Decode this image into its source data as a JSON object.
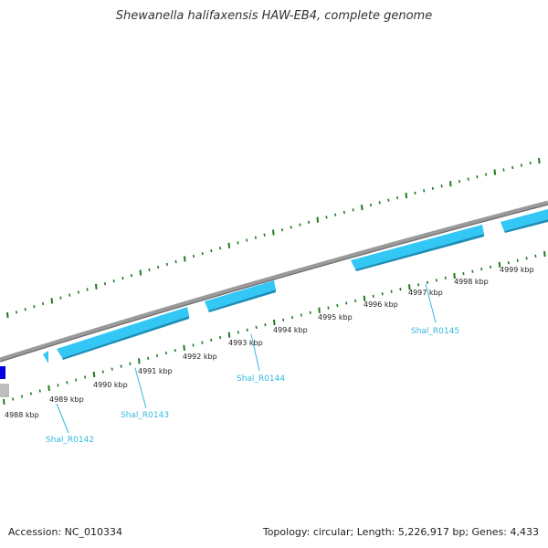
{
  "title": "Shewanella halifaxensis HAW-EB4, complete genome",
  "footer": {
    "accession": "Accession: NC_010334",
    "summary": "Topology: circular; Length: 5,226,917 bp; Genes: 4,433"
  },
  "colors": {
    "backbone": "#8a8a8a",
    "gene": "#33c7f5",
    "gene_dark": "#1a8fb8",
    "gene_label": "#33b8e0",
    "tick": "#1f7a1f",
    "blue_block": "#0000e0",
    "gray_block": "#bdbdbd"
  },
  "ticks": [
    {
      "kbp": 4988,
      "label": "4988 kbp"
    },
    {
      "kbp": 4989,
      "label": "4989 kbp"
    },
    {
      "kbp": 4990,
      "label": "4990 kbp"
    },
    {
      "kbp": 4991,
      "label": "4991 kbp"
    },
    {
      "kbp": 4992,
      "label": "4992 kbp"
    },
    {
      "kbp": 4993,
      "label": "4993 kbp"
    },
    {
      "kbp": 4994,
      "label": "4994 kbp"
    },
    {
      "kbp": 4995,
      "label": "4995 kbp"
    },
    {
      "kbp": 4996,
      "label": "4996 kbp"
    },
    {
      "kbp": 4997,
      "label": "4997 kbp"
    },
    {
      "kbp": 4998,
      "label": "4998 kbp"
    },
    {
      "kbp": 4999,
      "label": "4999 kbp"
    }
  ],
  "genes": [
    {
      "name": "Shal_R0142"
    },
    {
      "name": "Shal_R0143"
    },
    {
      "name": "Shal_R0144"
    },
    {
      "name": "Shal_R0145"
    }
  ]
}
